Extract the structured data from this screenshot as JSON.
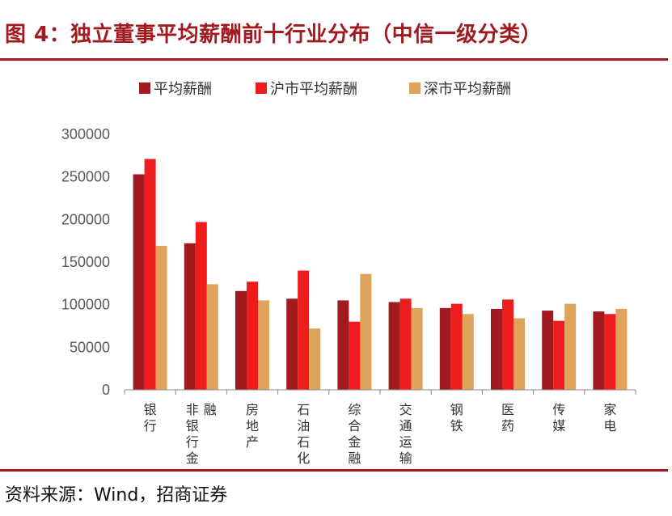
{
  "figure": {
    "title": "图 4：独立董事平均薪酬前十行业分布（中信一级分类）",
    "source": "资料来源：Wind，招商证券"
  },
  "colors": {
    "accent": "#a11a1f",
    "series": [
      "#a11a1f",
      "#ee1c1c",
      "#e0a35c"
    ]
  },
  "chart_data": {
    "type": "bar",
    "title": "",
    "xlabel": "",
    "ylabel": "",
    "ylim": [
      0,
      300000
    ],
    "yticks": [
      0,
      50000,
      100000,
      150000,
      200000,
      250000,
      300000
    ],
    "grid": false,
    "legend_position": "top",
    "categories": [
      "银行",
      "非银行金融",
      "房地产",
      "石油石化",
      "综合金融",
      "交通运输",
      "钢铁",
      "医药",
      "传媒",
      "家电"
    ],
    "series": [
      {
        "name": "平均薪酬",
        "values": [
          253000,
          172000,
          116000,
          107000,
          105000,
          103000,
          96000,
          95000,
          93000,
          92000
        ]
      },
      {
        "name": "沪市平均薪酬",
        "values": [
          271000,
          197000,
          127000,
          140000,
          80000,
          107000,
          101000,
          106000,
          81000,
          89000
        ]
      },
      {
        "name": "深市平均薪酬",
        "values": [
          169000,
          124000,
          105000,
          72000,
          136000,
          96000,
          89000,
          84000,
          101000,
          95000
        ]
      }
    ]
  }
}
